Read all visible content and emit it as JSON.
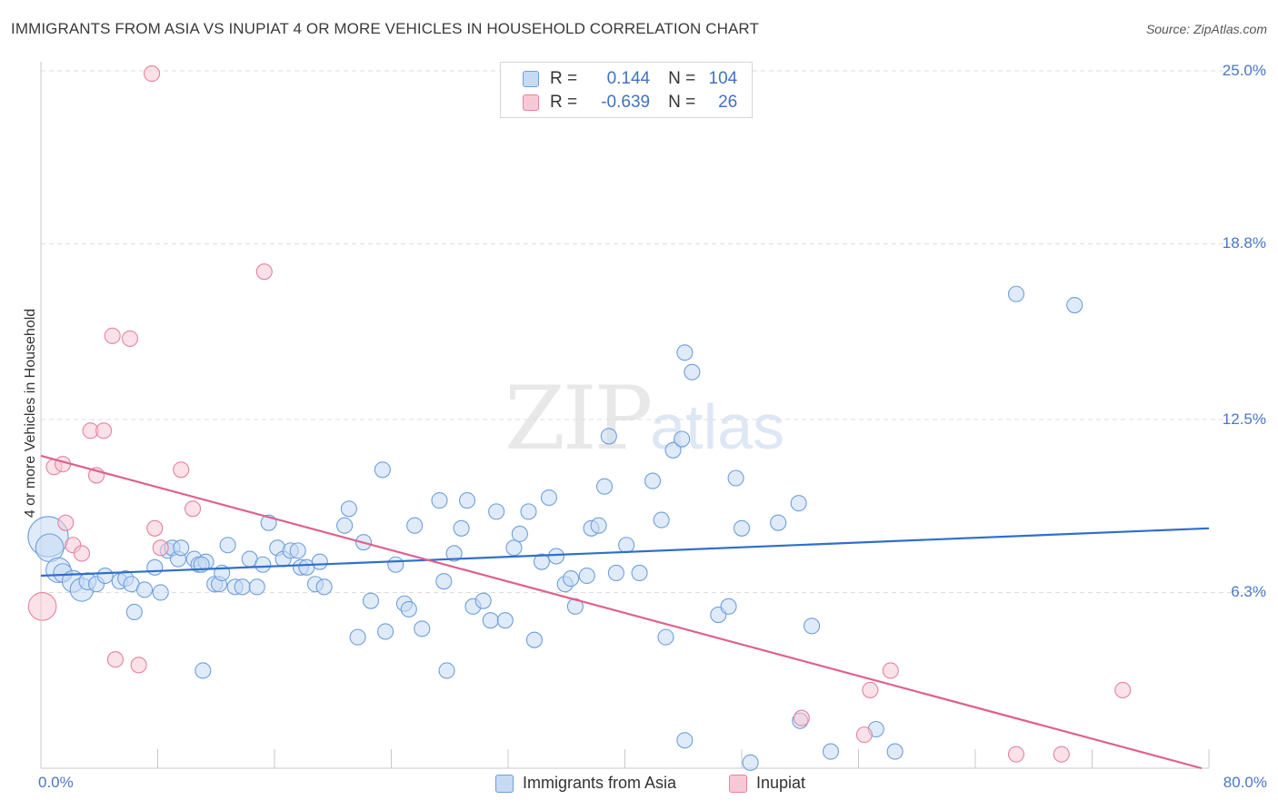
{
  "chart_data": {
    "type": "scatter",
    "title": "IMMIGRANTS FROM ASIA VS INUPIAT 4 OR MORE VEHICLES IN HOUSEHOLD CORRELATION CHART",
    "source": "Source: ZipAtlas.com",
    "ylabel": "4 or more Vehicles in Household",
    "xlim": [
      0,
      80
    ],
    "ylim": [
      0,
      25
    ],
    "y_tick_labels": [
      "25.0%",
      "18.8%",
      "12.5%",
      "6.3%"
    ],
    "y_tick_values": [
      25.0,
      18.8,
      12.5,
      6.3
    ],
    "x_tick_labels": [
      "0.0%",
      "80.0%"
    ],
    "x_tick_values": [
      0,
      80
    ],
    "grid": true,
    "legend_position": "top-center",
    "stats": [
      {
        "r_label": "R =",
        "r": "0.144",
        "n_label": "N =",
        "n": "104"
      },
      {
        "r_label": "R =",
        "r": "-0.639",
        "n_label": "N =",
        "n": "26"
      }
    ],
    "series": [
      {
        "name": "Immigrants from Asia",
        "color": "#6e9fdc",
        "fill": "#c7daf4",
        "trend": [
          [
            0,
            6.9
          ],
          [
            80,
            8.6
          ]
        ],
        "points": [
          [
            0.5,
            8.3,
            2.6
          ],
          [
            0.6,
            7.9,
            1.8
          ],
          [
            1.2,
            7.1,
            1.6
          ],
          [
            1.5,
            7.0,
            1.2
          ],
          [
            2.2,
            6.7,
            1.4
          ],
          [
            2.8,
            6.4,
            1.5
          ],
          [
            3.2,
            6.7,
            1.1
          ],
          [
            3.8,
            6.6,
            1.0
          ],
          [
            4.4,
            6.9,
            1.0
          ],
          [
            5.4,
            6.7,
            1.0
          ],
          [
            5.8,
            6.8,
            1.0
          ],
          [
            6.2,
            6.6,
            1.0
          ],
          [
            6.4,
            5.6,
            1.0
          ],
          [
            7.1,
            6.4,
            1.0
          ],
          [
            7.8,
            7.2,
            1.0
          ],
          [
            8.2,
            6.3,
            1.0
          ],
          [
            8.7,
            7.8,
            1.0
          ],
          [
            9.0,
            7.9,
            1.0
          ],
          [
            9.4,
            7.5,
            1.0
          ],
          [
            9.6,
            7.9,
            1.0
          ],
          [
            10.5,
            7.5,
            1.0
          ],
          [
            10.8,
            7.3,
            1.0
          ],
          [
            11.3,
            7.4,
            1.0
          ],
          [
            11.0,
            7.3,
            1.0
          ],
          [
            11.1,
            3.5,
            1.0
          ],
          [
            11.9,
            6.6,
            1.0
          ],
          [
            12.2,
            6.6,
            1.0
          ],
          [
            12.4,
            7.0,
            1.0
          ],
          [
            12.8,
            8.0,
            1.0
          ],
          [
            13.3,
            6.5,
            1.0
          ],
          [
            13.8,
            6.5,
            1.0
          ],
          [
            14.3,
            7.5,
            1.0
          ],
          [
            14.8,
            6.5,
            1.0
          ],
          [
            15.2,
            7.3,
            1.0
          ],
          [
            15.6,
            8.8,
            1.0
          ],
          [
            16.2,
            7.9,
            1.0
          ],
          [
            16.6,
            7.5,
            1.0
          ],
          [
            17.1,
            7.8,
            1.0
          ],
          [
            17.6,
            7.8,
            1.0
          ],
          [
            17.8,
            7.2,
            1.0
          ],
          [
            18.2,
            7.2,
            1.0
          ],
          [
            18.8,
            6.6,
            1.0
          ],
          [
            19.1,
            7.4,
            1.0
          ],
          [
            19.4,
            6.5,
            1.0
          ],
          [
            20.8,
            8.7,
            1.0
          ],
          [
            21.1,
            9.3,
            1.0
          ],
          [
            22.1,
            8.1,
            1.0
          ],
          [
            21.7,
            4.7,
            1.0
          ],
          [
            22.6,
            6.0,
            1.0
          ],
          [
            23.4,
            10.7,
            1.0
          ],
          [
            23.6,
            4.9,
            1.0
          ],
          [
            24.3,
            7.3,
            1.0
          ],
          [
            24.9,
            5.9,
            1.0
          ],
          [
            25.2,
            5.7,
            1.0
          ],
          [
            25.6,
            8.7,
            1.0
          ],
          [
            26.1,
            5.0,
            1.0
          ],
          [
            27.3,
            9.6,
            1.0
          ],
          [
            27.6,
            6.7,
            1.0
          ],
          [
            27.8,
            3.5,
            1.0
          ],
          [
            28.3,
            7.7,
            1.0
          ],
          [
            28.8,
            8.6,
            1.0
          ],
          [
            29.2,
            9.6,
            1.0
          ],
          [
            29.6,
            5.8,
            1.0
          ],
          [
            30.3,
            6.0,
            1.0
          ],
          [
            30.8,
            5.3,
            1.0
          ],
          [
            31.2,
            9.2,
            1.0
          ],
          [
            31.8,
            5.3,
            1.0
          ],
          [
            32.4,
            7.9,
            1.0
          ],
          [
            32.8,
            8.4,
            1.0
          ],
          [
            33.4,
            9.2,
            1.0
          ],
          [
            33.8,
            4.6,
            1.0
          ],
          [
            34.3,
            7.4,
            1.0
          ],
          [
            34.8,
            9.7,
            1.0
          ],
          [
            35.3,
            7.6,
            1.0
          ],
          [
            35.9,
            6.6,
            1.0
          ],
          [
            36.3,
            6.8,
            1.0
          ],
          [
            36.6,
            5.8,
            1.0
          ],
          [
            37.4,
            6.9,
            1.0
          ],
          [
            37.7,
            8.6,
            1.0
          ],
          [
            38.2,
            8.7,
            1.0
          ],
          [
            38.6,
            10.1,
            1.0
          ],
          [
            38.9,
            11.9,
            1.0
          ],
          [
            39.4,
            7.0,
            1.0
          ],
          [
            40.1,
            8.0,
            1.0
          ],
          [
            41.0,
            7.0,
            1.0
          ],
          [
            41.9,
            10.3,
            1.0
          ],
          [
            42.5,
            8.9,
            1.0
          ],
          [
            42.8,
            4.7,
            1.0
          ],
          [
            43.3,
            11.4,
            1.0
          ],
          [
            43.9,
            11.8,
            1.0
          ],
          [
            44.1,
            1.0,
            1.0
          ],
          [
            44.6,
            14.2,
            1.0
          ],
          [
            44.1,
            14.9,
            1.0
          ],
          [
            46.4,
            5.5,
            1.0
          ],
          [
            47.1,
            5.8,
            1.0
          ],
          [
            47.6,
            10.4,
            1.0
          ],
          [
            48.0,
            8.6,
            1.0
          ],
          [
            48.6,
            0.2,
            1.0
          ],
          [
            50.5,
            8.8,
            1.0
          ],
          [
            51.9,
            9.5,
            1.0
          ],
          [
            52.0,
            1.7,
            1.0
          ],
          [
            52.8,
            5.1,
            1.0
          ],
          [
            54.1,
            0.6,
            1.0
          ],
          [
            57.2,
            1.4,
            1.0
          ],
          [
            58.5,
            0.6,
            1.0
          ],
          [
            66.8,
            17.0,
            1.0
          ],
          [
            70.8,
            16.6,
            1.0
          ]
        ]
      },
      {
        "name": "Inupiat",
        "color": "#e4839f",
        "fill": "#f7c9d6",
        "trend": [
          [
            0,
            11.2
          ],
          [
            79.5,
            0.0
          ]
        ],
        "points": [
          [
            0.1,
            5.8,
            1.8
          ],
          [
            0.9,
            10.8,
            1.0
          ],
          [
            1.5,
            10.9,
            1.0
          ],
          [
            1.7,
            8.8,
            1.0
          ],
          [
            2.2,
            8.0,
            1.0
          ],
          [
            2.8,
            7.7,
            1.0
          ],
          [
            3.4,
            12.1,
            1.0
          ],
          [
            4.3,
            12.1,
            1.0
          ],
          [
            3.8,
            10.5,
            1.0
          ],
          [
            4.9,
            15.5,
            1.0
          ],
          [
            6.1,
            15.4,
            1.0
          ],
          [
            5.1,
            3.9,
            1.0
          ],
          [
            6.7,
            3.7,
            1.0
          ],
          [
            7.6,
            24.9,
            1.0
          ],
          [
            7.8,
            8.6,
            1.0
          ],
          [
            8.2,
            7.9,
            1.0
          ],
          [
            9.6,
            10.7,
            1.0
          ],
          [
            10.4,
            9.3,
            1.0
          ],
          [
            15.3,
            17.8,
            1.0
          ],
          [
            52.1,
            1.8,
            1.0
          ],
          [
            56.4,
            1.2,
            1.0
          ],
          [
            56.8,
            2.8,
            1.0
          ],
          [
            58.2,
            3.5,
            1.0
          ],
          [
            66.8,
            0.5,
            1.0
          ],
          [
            69.9,
            0.5,
            1.0
          ],
          [
            74.1,
            2.8,
            1.0
          ]
        ]
      }
    ]
  }
}
